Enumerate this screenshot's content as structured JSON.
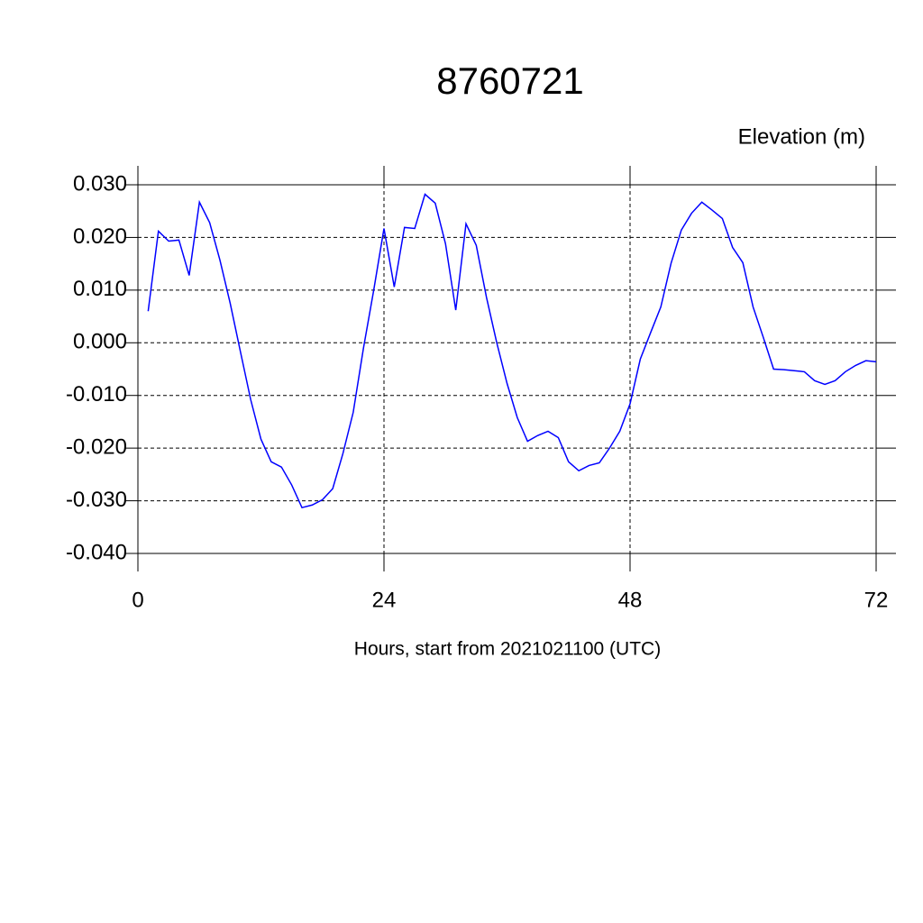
{
  "chart_data": {
    "type": "line",
    "title": "8760721",
    "y_label": "Elevation (m)",
    "x_label": "Hours, start from 2021021100 (UTC)",
    "x": [
      1,
      2,
      3,
      4,
      5,
      6,
      7,
      8,
      9,
      10,
      11,
      12,
      13,
      14,
      15,
      16,
      17,
      18,
      19,
      20,
      21,
      22,
      23,
      24,
      25,
      26,
      27,
      28,
      29,
      30,
      31,
      32,
      33,
      34,
      35,
      36,
      37,
      38,
      39,
      40,
      41,
      42,
      43,
      44,
      45,
      46,
      47,
      48,
      49,
      50,
      51,
      52,
      53,
      54,
      55,
      56,
      57,
      58,
      59,
      60,
      61,
      62,
      63,
      64,
      65,
      66,
      67,
      68,
      69,
      70,
      71,
      72
    ],
    "series": [
      {
        "name": "Elevation",
        "color": "#0000ff",
        "values": [
          0.006,
          0.0212,
          0.0193,
          0.0195,
          0.0128,
          0.0267,
          0.0228,
          0.0157,
          0.0075,
          -0.0017,
          -0.0108,
          -0.0183,
          -0.0226,
          -0.0236,
          -0.027,
          -0.0313,
          -0.0308,
          -0.0298,
          -0.0277,
          -0.021,
          -0.0132,
          -0.001,
          0.01,
          0.0217,
          0.0106,
          0.0219,
          0.0217,
          0.0282,
          0.0265,
          0.0188,
          0.0062,
          0.0226,
          0.0185,
          0.0086,
          0.0,
          -0.0077,
          -0.0142,
          -0.0187,
          -0.0176,
          -0.0168,
          -0.018,
          -0.0226,
          -0.0243,
          -0.0233,
          -0.0228,
          -0.02,
          -0.0168,
          -0.0116,
          -0.0031,
          0.0019,
          0.0068,
          0.0151,
          0.0214,
          0.0246,
          0.0267,
          0.0252,
          0.0236,
          0.0181,
          0.0152,
          0.0068,
          0.001,
          -0.005,
          -0.0051,
          -0.0053,
          -0.0055,
          -0.0072,
          -0.0079,
          -0.0072,
          -0.0055,
          -0.0043,
          -0.0034,
          -0.0036
        ]
      }
    ],
    "xlim": [
      0,
      72
    ],
    "xticks": [
      0,
      24,
      48,
      72
    ],
    "ylim": [
      -0.04,
      0.03
    ],
    "yticks": [
      {
        "value": -0.04,
        "label": "-0.040"
      },
      {
        "value": -0.03,
        "label": "-0.030"
      },
      {
        "value": -0.02,
        "label": "-0.020"
      },
      {
        "value": -0.01,
        "label": "-0.010"
      },
      {
        "value": 0,
        "label": "0.000"
      },
      {
        "value": 0.01,
        "label": "0.010"
      },
      {
        "value": 0.02,
        "label": "0.020"
      },
      {
        "value": 0.03,
        "label": "0.030"
      }
    ],
    "grid": true
  }
}
